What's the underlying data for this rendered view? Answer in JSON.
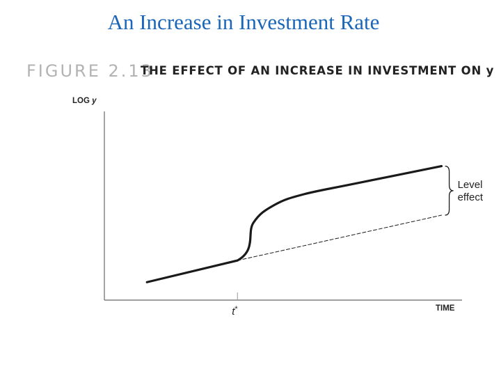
{
  "slide": {
    "title": "An Increase in Investment Rate"
  },
  "figure": {
    "number_label": "FIGURE 2.13",
    "caption": "THE EFFECT OF AN INCREASE IN INVESTMENT ON y"
  },
  "chart_data": {
    "type": "line",
    "ylabel_main": "LOG",
    "ylabel_var": "y",
    "xlabel": "TIME",
    "x_tick_label_main": "t",
    "x_tick_label_sup": "*",
    "xlim": [
      0,
      10
    ],
    "ylim": [
      0,
      10
    ],
    "x_tick": 3.75,
    "series": [
      {
        "style": "solid",
        "points": [
          [
            1.2,
            0.95
          ],
          [
            3.75,
            2.1
          ],
          [
            4.2,
            4.1
          ],
          [
            4.8,
            5.05
          ],
          [
            5.6,
            5.6
          ],
          [
            7.0,
            6.15
          ],
          [
            9.5,
            7.1
          ]
        ]
      },
      {
        "style": "dashed",
        "points": [
          [
            3.75,
            2.1
          ],
          [
            9.5,
            4.5
          ]
        ]
      }
    ],
    "annotation": {
      "lines": [
        "Level",
        "effect"
      ],
      "x": 9.6,
      "y_top": 7.1,
      "y_bottom": 4.5
    },
    "grid": false,
    "legend": "none",
    "colors": {
      "line": "#1a1a1a",
      "axis": "#666666",
      "title": "#1b66b8"
    }
  }
}
